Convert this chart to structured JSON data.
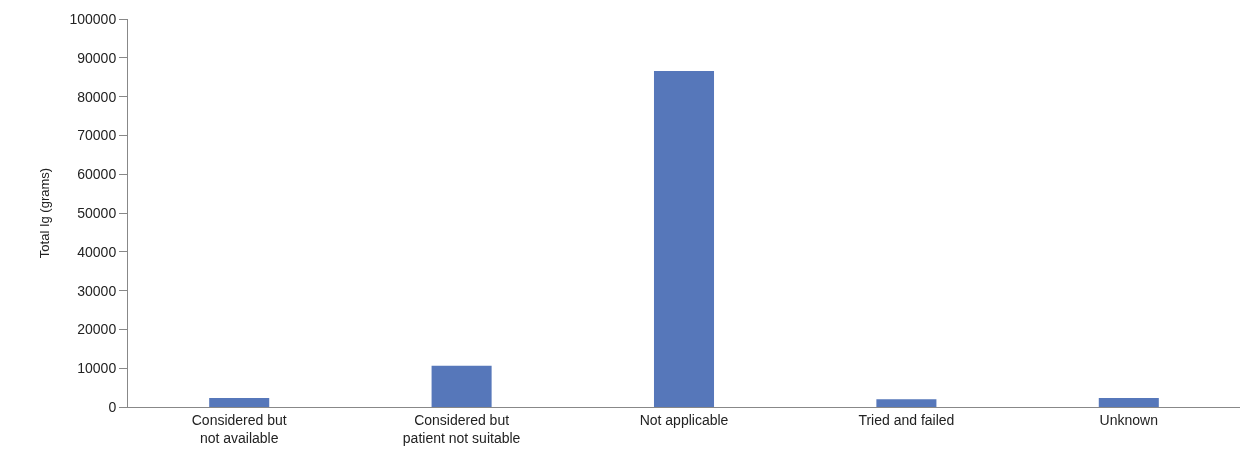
{
  "chart_data": {
    "type": "bar",
    "ylabel": "Total Ig (grams)",
    "categories": [
      "Considered but\nnot available",
      "Considered but\npatient not suitable",
      "Not applicable",
      "Tried and failed",
      "Unknown"
    ],
    "values": [
      2300,
      10600,
      86600,
      2000,
      2300
    ],
    "color": "#5677ba",
    "ylim": [
      0,
      100000
    ],
    "yticks": [
      0,
      10000,
      20000,
      30000,
      40000,
      50000,
      60000,
      70000,
      80000,
      90000,
      100000
    ],
    "grid": false,
    "legend": false
  }
}
